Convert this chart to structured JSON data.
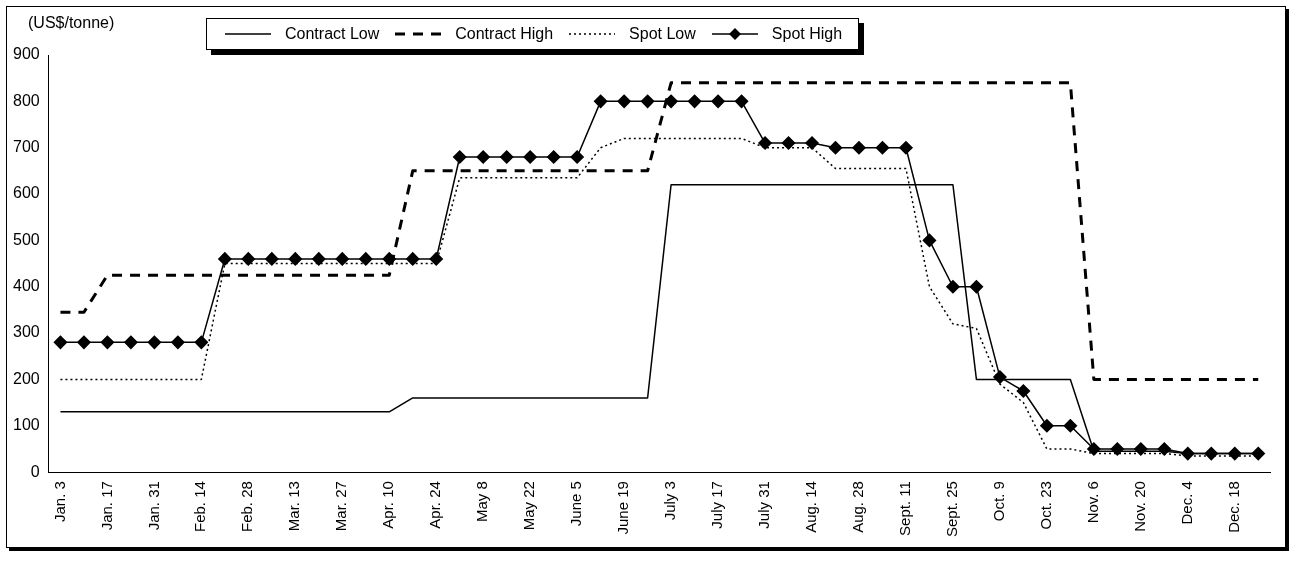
{
  "chart_data": {
    "type": "line",
    "ylabel": "(US$/tonne)",
    "categories": [
      "Jan. 3",
      null,
      "Jan. 17",
      null,
      "Jan. 31",
      null,
      "Feb. 14",
      null,
      "Feb. 28",
      null,
      "Mar. 13",
      null,
      "Mar. 27",
      null,
      "Apr. 10",
      null,
      "Apr. 24",
      null,
      "May 8",
      null,
      "May 22",
      null,
      "June 5",
      null,
      "June 19",
      null,
      "July 3",
      null,
      "July 17",
      null,
      "July 31",
      null,
      "Aug. 14",
      null,
      "Aug. 28",
      null,
      "Sept. 11",
      null,
      "Sept. 25",
      null,
      "Oct. 9",
      null,
      "Oct. 23",
      null,
      "Nov. 6",
      null,
      "Nov. 20",
      null,
      "Dec. 4",
      null,
      "Dec. 18",
      null
    ],
    "series": [
      {
        "name": "Contract Low",
        "color": "#000000",
        "line_style": "solid",
        "marker": "none",
        "values": [
          130,
          130,
          130,
          130,
          130,
          130,
          130,
          130,
          130,
          130,
          130,
          130,
          130,
          130,
          130,
          160,
          160,
          160,
          160,
          160,
          160,
          160,
          160,
          160,
          160,
          160,
          620,
          620,
          620,
          620,
          620,
          620,
          620,
          620,
          620,
          620,
          620,
          620,
          620,
          200,
          200,
          200,
          200,
          200,
          45,
          45,
          45,
          45,
          40,
          40,
          40,
          40
        ]
      },
      {
        "name": "Contract High",
        "color": "#000000",
        "line_style": "dashed",
        "marker": "none",
        "values": [
          345,
          345,
          425,
          425,
          425,
          425,
          425,
          425,
          425,
          425,
          425,
          425,
          425,
          425,
          425,
          650,
          650,
          650,
          650,
          650,
          650,
          650,
          650,
          650,
          650,
          650,
          840,
          840,
          840,
          840,
          840,
          840,
          840,
          840,
          840,
          840,
          840,
          840,
          840,
          840,
          840,
          840,
          840,
          840,
          200,
          200,
          200,
          200,
          200,
          200,
          200,
          200
        ]
      },
      {
        "name": "Spot Low",
        "color": "#000000",
        "line_style": "dotted",
        "marker": "none",
        "values": [
          200,
          200,
          200,
          200,
          200,
          200,
          200,
          450,
          450,
          450,
          450,
          450,
          450,
          450,
          450,
          450,
          450,
          635,
          635,
          635,
          635,
          635,
          635,
          700,
          720,
          720,
          720,
          720,
          720,
          720,
          700,
          700,
          700,
          655,
          655,
          655,
          655,
          400,
          320,
          310,
          190,
          150,
          50,
          50,
          40,
          40,
          40,
          40,
          35,
          35,
          35,
          35
        ]
      },
      {
        "name": "Spot High",
        "color": "#000000",
        "line_style": "solid",
        "marker": "diamond",
        "values": [
          280,
          280,
          280,
          280,
          280,
          280,
          280,
          460,
          460,
          460,
          460,
          460,
          460,
          460,
          460,
          460,
          460,
          680,
          680,
          680,
          680,
          680,
          680,
          800,
          800,
          800,
          800,
          800,
          800,
          800,
          710,
          710,
          710,
          700,
          700,
          700,
          700,
          500,
          400,
          400,
          205,
          175,
          100,
          100,
          50,
          50,
          50,
          50,
          40,
          40,
          40,
          40
        ]
      }
    ],
    "ylim": [
      0,
      900
    ],
    "yticks": [
      0,
      100,
      200,
      300,
      400,
      500,
      600,
      700,
      800,
      900
    ],
    "grid": false,
    "legend": "top"
  }
}
